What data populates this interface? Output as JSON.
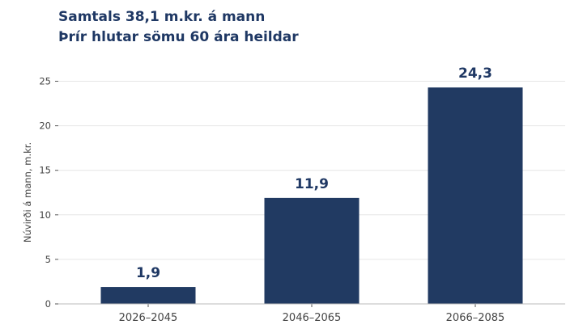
{
  "chart_data": {
    "type": "bar",
    "title": "Samtals 38,1 m.kr. á mann",
    "subtitle": "Þrír hlutar sömu 60 ára heildar",
    "ylabel": "Núvirði á mann, m.kr.",
    "xlabel": "",
    "categories": [
      "2026–2045",
      "2046–2065",
      "2066–2085"
    ],
    "values": [
      1.9,
      11.9,
      24.3
    ],
    "data_labels": [
      "1,9",
      "11,9",
      "24,3"
    ],
    "ylim": [
      0,
      26.5
    ],
    "yticks": [
      0,
      5,
      10,
      15,
      20,
      25
    ],
    "grid": true,
    "legend": "none",
    "bar_color": "#213a62",
    "label_color": "#1f3864"
  }
}
